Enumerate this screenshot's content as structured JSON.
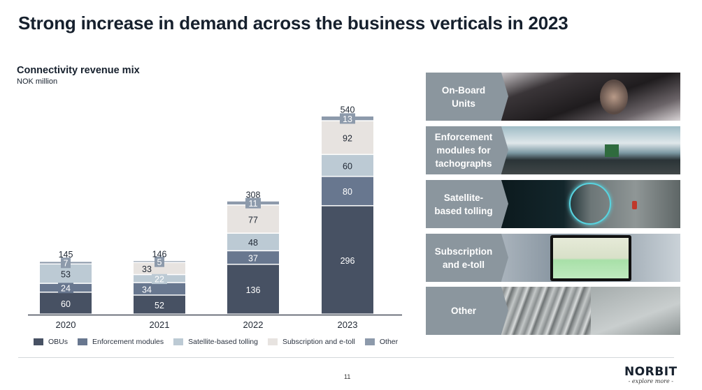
{
  "page": {
    "title": "Strong increase in demand across the business verticals in 2023",
    "page_number": "11"
  },
  "logo": {
    "name": "NORBIT",
    "tagline": "- explore more -"
  },
  "chart_data": {
    "type": "bar",
    "stacked": true,
    "title": "Connectivity revenue mix",
    "subtitle": "NOK million",
    "xlabel": "",
    "ylabel": "",
    "categories": [
      "2020",
      "2021",
      "2022",
      "2023"
    ],
    "totals": [
      145,
      146,
      308,
      540
    ],
    "series": [
      {
        "name": "OBUs",
        "color": "#475163",
        "values": [
          60,
          52,
          136,
          296
        ]
      },
      {
        "name": "Enforcement modules",
        "color": "#68778f",
        "values": [
          24,
          34,
          37,
          80
        ]
      },
      {
        "name": "Satellite-based tolling",
        "color": "#bccad4",
        "values": [
          53,
          22,
          48,
          60
        ]
      },
      {
        "name": "Subscription and e-toll",
        "color": "#e7e3e0",
        "values": [
          0,
          33,
          77,
          92
        ]
      },
      {
        "name": "Other",
        "color": "#8d9aab",
        "values": [
          7,
          5,
          11,
          13
        ]
      }
    ],
    "ylim": [
      0,
      560
    ],
    "grid": false,
    "legend_position": "bottom"
  },
  "verticals": [
    {
      "label_line1": "On-Board",
      "label_line2": "Units",
      "label_line3": "",
      "image": "driver-installing-obu"
    },
    {
      "label_line1": "Enforcement",
      "label_line2": "modules for",
      "label_line3": "tachographs",
      "image": "truck-on-mountain-road"
    },
    {
      "label_line1": "Satellite-",
      "label_line2": "based tolling",
      "label_line3": "",
      "image": "highway-satellite-overlay"
    },
    {
      "label_line1": "Subscription",
      "label_line2": "and e-toll",
      "label_line3": "",
      "image": "laptop-map-dashboard"
    },
    {
      "label_line1": "Other",
      "label_line2": "",
      "label_line3": "",
      "image": "bridge-traffic"
    }
  ]
}
